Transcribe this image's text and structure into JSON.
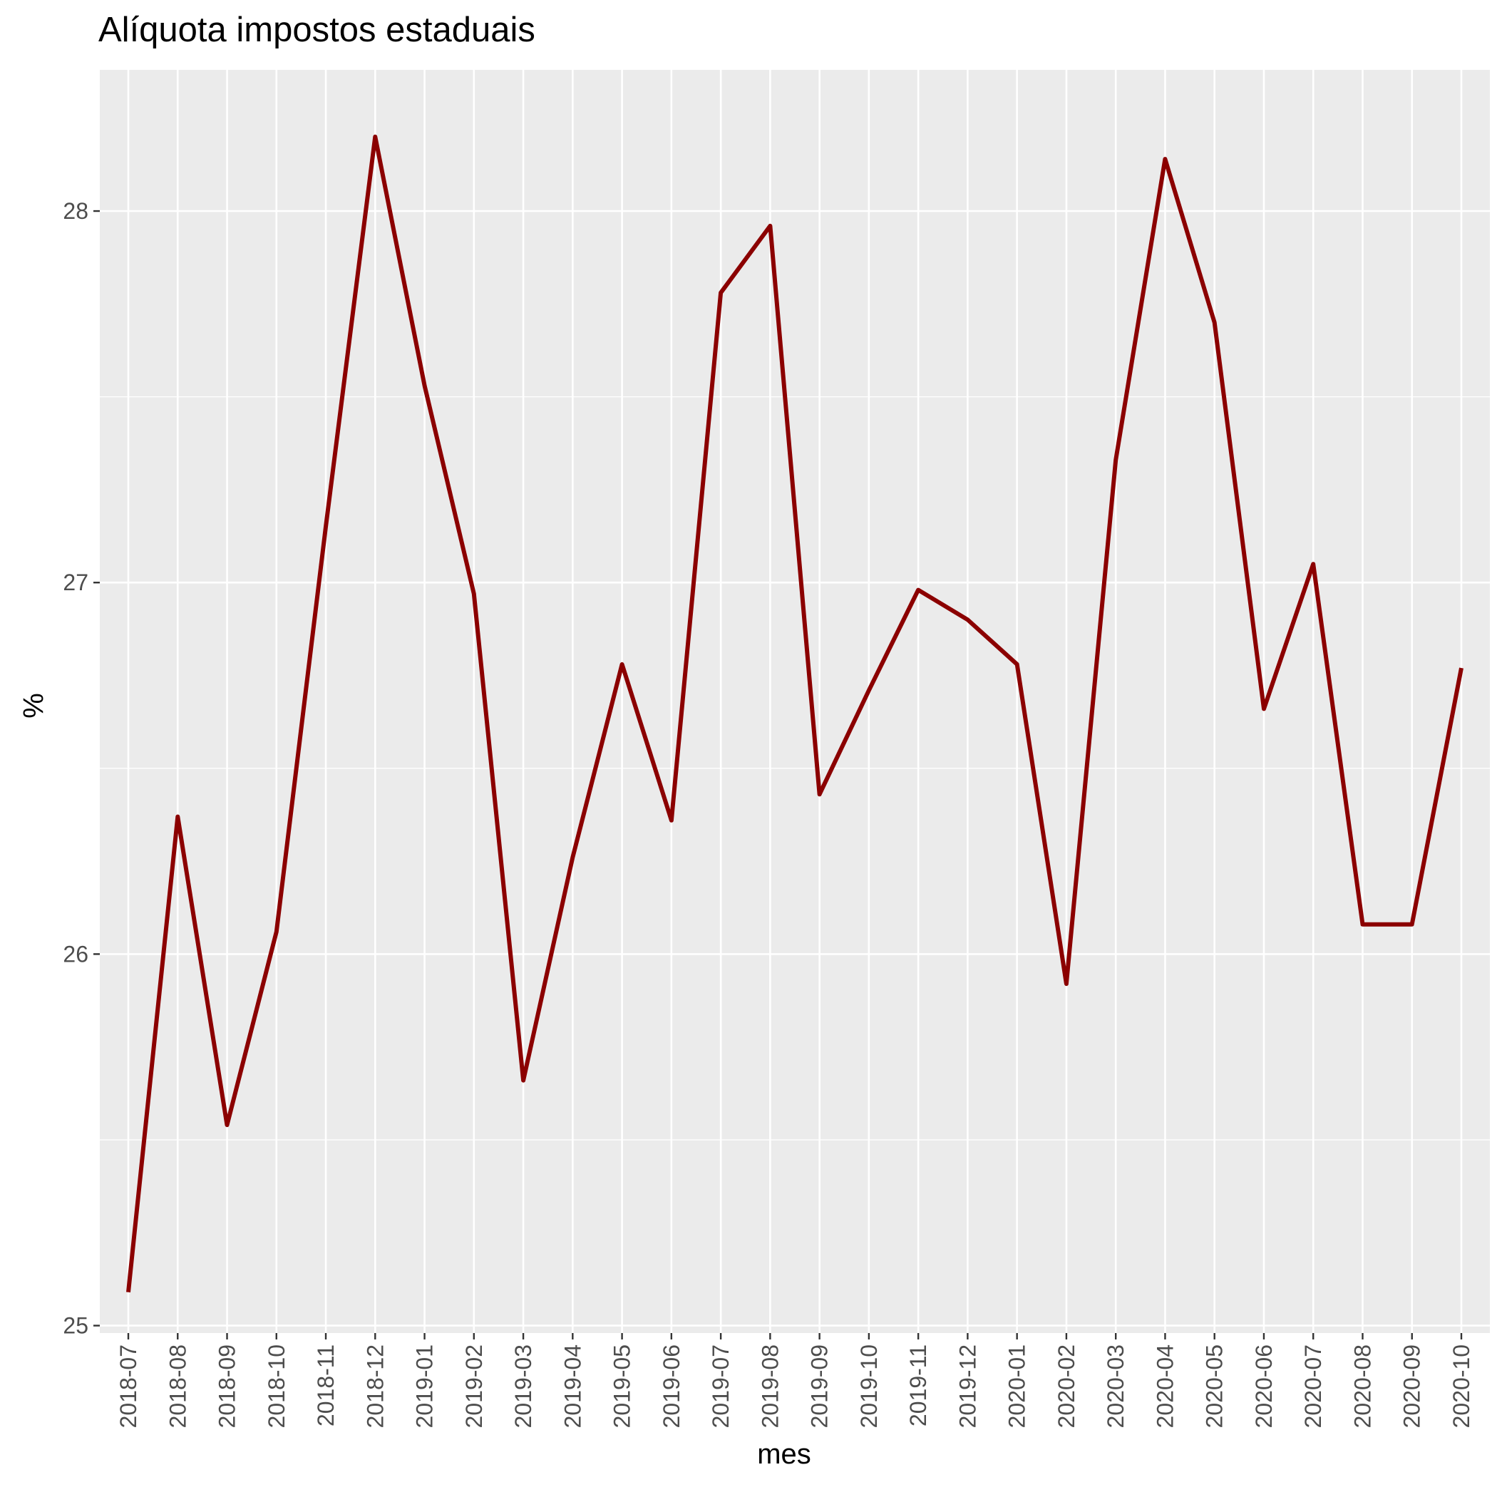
{
  "chart_data": {
    "type": "line",
    "title": "Alíquota impostos estaduais",
    "xlabel": "mes",
    "ylabel": "%",
    "x": [
      "2018-07",
      "2018-08",
      "2018-09",
      "2018-10",
      "2018-11",
      "2018-12",
      "2019-01",
      "2019-02",
      "2019-03",
      "2019-04",
      "2019-05",
      "2019-06",
      "2019-07",
      "2019-08",
      "2019-09",
      "2019-10",
      "2019-11",
      "2019-12",
      "2020-01",
      "2020-02",
      "2020-03",
      "2020-04",
      "2020-05",
      "2020-06",
      "2020-07",
      "2020-08",
      "2020-09",
      "2020-10"
    ],
    "series": [
      {
        "values": [
          25.09,
          26.37,
          25.54,
          26.06,
          27.15,
          28.2,
          27.53,
          26.97,
          25.66,
          26.26,
          26.78,
          26.36,
          27.78,
          27.96,
          26.43,
          26.71,
          26.98,
          26.9,
          26.78,
          25.92,
          27.33,
          28.14,
          27.7,
          26.66,
          27.05,
          26.08,
          26.08,
          26.77
        ],
        "color": "#8b0000"
      }
    ],
    "ylim": [
      24.98,
      28.38
    ],
    "yticks": [
      "25",
      "26",
      "27",
      "28"
    ],
    "grid": true,
    "panel_background": "#ebebeb",
    "grid_color": "#ffffff"
  }
}
